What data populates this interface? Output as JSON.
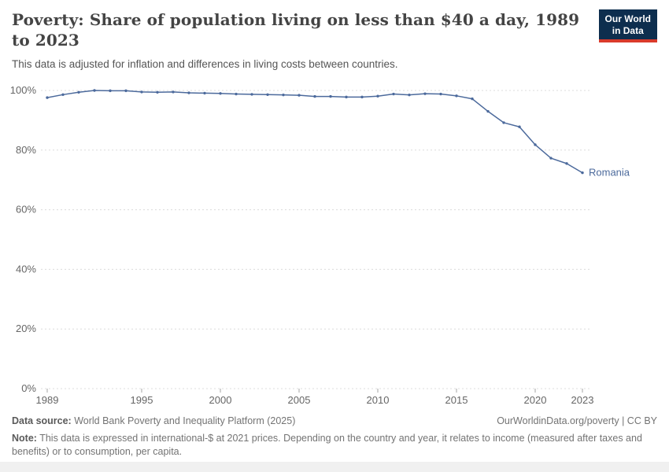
{
  "header": {
    "title": "Poverty: Share of population living on less than $40 a day, 1989 to 2023",
    "subtitle": "This data is adjusted for inflation and differences in living costs between countries.",
    "logo": {
      "line1": "Our World",
      "line2": "in Data"
    }
  },
  "chart_data": {
    "type": "line",
    "title": "Poverty: Share of population living on less than $40 a day, 1989 to 2023",
    "xlabel": "",
    "ylabel": "",
    "ylim": [
      0,
      100
    ],
    "grid": "horizontal-dashed",
    "legend_position": "end-of-line-label",
    "x_ticks": [
      {
        "v": 1989,
        "label": "1989"
      },
      {
        "v": 1995,
        "label": "1995"
      },
      {
        "v": 2000,
        "label": "2000"
      },
      {
        "v": 2005,
        "label": "2005"
      },
      {
        "v": 2010,
        "label": "2010"
      },
      {
        "v": 2015,
        "label": "2015"
      },
      {
        "v": 2020,
        "label": "2020"
      },
      {
        "v": 2023,
        "label": "2023"
      }
    ],
    "y_ticks": [
      {
        "v": 0,
        "label": "0%"
      },
      {
        "v": 20,
        "label": "20%"
      },
      {
        "v": 40,
        "label": "40%"
      },
      {
        "v": 60,
        "label": "60%"
      },
      {
        "v": 80,
        "label": "80%"
      },
      {
        "v": 100,
        "label": "100%"
      }
    ],
    "series": [
      {
        "name": "Romania",
        "color": "#4c6a9c",
        "x": [
          1989,
          1990,
          1991,
          1992,
          1993,
          1994,
          1995,
          1996,
          1997,
          1998,
          1999,
          2000,
          2001,
          2002,
          2003,
          2004,
          2005,
          2006,
          2007,
          2008,
          2009,
          2010,
          2011,
          2012,
          2013,
          2014,
          2015,
          2016,
          2017,
          2018,
          2019,
          2020,
          2021,
          2022,
          2023
        ],
        "values": [
          97.6,
          98.6,
          99.4,
          100,
          99.9,
          99.9,
          99.5,
          99.4,
          99.5,
          99.2,
          99.1,
          99.0,
          98.8,
          98.7,
          98.6,
          98.5,
          98.4,
          98.0,
          98.0,
          97.8,
          97.8,
          98.1,
          98.8,
          98.5,
          98.9,
          98.8,
          98.2,
          97.2,
          93.0,
          89.2,
          87.8,
          81.8,
          77.3,
          75.5,
          72.4
        ]
      }
    ]
  },
  "footer": {
    "datasource_label": "Data source:",
    "datasource_text": " World Bank Poverty and Inequality Platform (2025)",
    "attribution": "OurWorldinData.org/poverty | CC BY",
    "note_label": "Note:",
    "note_text": " This data is expressed in international-$ at 2021 prices. Depending on the country and year, it relates to income (measured after taxes and benefits) or to consumption, per capita."
  }
}
